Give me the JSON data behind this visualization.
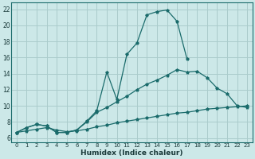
{
  "xlabel": "Humidex (Indice chaleur)",
  "bg_color": "#cce8e8",
  "grid_color": "#aacccc",
  "line_color": "#1a6b6b",
  "xlim": [
    -0.5,
    23.5
  ],
  "ylim": [
    5.5,
    22.8
  ],
  "xticks": [
    0,
    1,
    2,
    3,
    4,
    5,
    6,
    7,
    8,
    9,
    10,
    11,
    12,
    13,
    14,
    15,
    16,
    17,
    18,
    19,
    20,
    21,
    22,
    23
  ],
  "yticks": [
    6,
    8,
    10,
    12,
    14,
    16,
    18,
    20,
    22
  ],
  "curve1_x": [
    0,
    1,
    2,
    3,
    4,
    5,
    6,
    7,
    8,
    9,
    10,
    11,
    12,
    13,
    14,
    15,
    16,
    17
  ],
  "curve1_y": [
    6.7,
    7.3,
    7.7,
    7.5,
    6.7,
    6.7,
    7.0,
    8.1,
    9.4,
    14.2,
    10.8,
    16.4,
    17.8,
    21.3,
    21.7,
    21.9,
    20.5,
    15.8
  ],
  "curve2_x": [
    0,
    1,
    2,
    3,
    4,
    5,
    6,
    7,
    8,
    9,
    10,
    11,
    12,
    13,
    14,
    15,
    16,
    17,
    18,
    19,
    20,
    21,
    22,
    23
  ],
  "curve2_y": [
    6.7,
    7.3,
    7.7,
    7.5,
    6.7,
    6.7,
    7.0,
    8.0,
    9.2,
    9.8,
    10.5,
    11.2,
    12.0,
    12.7,
    13.2,
    13.8,
    14.5,
    14.2,
    14.3,
    13.5,
    12.2,
    11.5,
    10.0,
    9.8
  ],
  "curve3_x": [
    0,
    1,
    2,
    3,
    4,
    5,
    6,
    7,
    8,
    9,
    10,
    11,
    12,
    13,
    14,
    15,
    16,
    17,
    18,
    19,
    20,
    21,
    22,
    23
  ],
  "curve3_y": [
    6.7,
    6.9,
    7.1,
    7.3,
    7.0,
    6.8,
    6.9,
    7.1,
    7.4,
    7.6,
    7.9,
    8.1,
    8.3,
    8.5,
    8.7,
    8.9,
    9.1,
    9.2,
    9.4,
    9.6,
    9.7,
    9.8,
    9.9,
    10.0
  ]
}
